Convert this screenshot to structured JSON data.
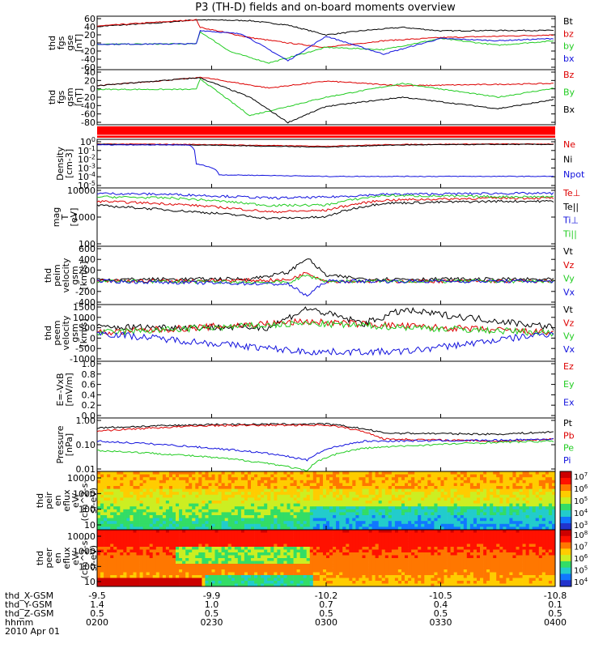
{
  "title": "P3 (TH-D) fields and on-board moments overview",
  "colors": {
    "black": "#000000",
    "red": "#dd0000",
    "green": "#22cc22",
    "blue": "#1111dd",
    "state_bar": "#ff0000"
  },
  "footer": {
    "rows": [
      {
        "label": "thd_X-GSM",
        "values": [
          "-9.5",
          "-9.9",
          "-10.2",
          "-10.5",
          "-10.8"
        ]
      },
      {
        "label": "thd_Y-GSM",
        "values": [
          "1.4",
          "1.0",
          "0.7",
          "0.4",
          "0.1"
        ]
      },
      {
        "label": "thd_Z-GSM",
        "values": [
          "0.5",
          "0.5",
          "0.5",
          "0.5",
          "0.5"
        ]
      },
      {
        "label": "hhmm",
        "values": [
          "0200",
          "0230",
          "0300",
          "0330",
          "0400"
        ]
      }
    ],
    "date": "2010 Apr 01"
  },
  "chart_data": [
    {
      "type": "line",
      "panel": "fgs_gse",
      "ylabel": [
        "thd",
        "fgs",
        "gse",
        "[nT]"
      ],
      "yticks": [
        "60",
        "40",
        "20",
        "0",
        "-20",
        "-40",
        "-60"
      ],
      "ylim": [
        -60,
        60
      ],
      "series": [
        {
          "name": "Bt",
          "color": "black",
          "x": [
            "0200",
            "0216",
            "0226",
            "0240",
            "0250",
            "0300",
            "0310",
            "0320",
            "0330",
            "0345",
            "0400"
          ],
          "y": [
            37,
            45,
            52,
            50,
            40,
            18,
            28,
            35,
            27,
            28,
            28
          ]
        },
        {
          "name": "bz",
          "color": "red",
          "x": [
            "0200",
            "0226",
            "0227",
            "0240",
            "0250",
            "0300",
            "0315",
            "0330",
            "0345",
            "0400"
          ],
          "y": [
            38,
            52,
            35,
            12,
            0,
            -10,
            5,
            12,
            15,
            18
          ]
        },
        {
          "name": "by",
          "color": "green",
          "x": [
            "0200",
            "0226",
            "0227",
            "0235",
            "0245",
            "0300",
            "0315",
            "0330",
            "0345",
            "0400"
          ],
          "y": [
            -3,
            -2,
            25,
            -20,
            -45,
            -10,
            -15,
            10,
            -5,
            5
          ]
        },
        {
          "name": "bx",
          "color": "blue",
          "x": [
            "0200",
            "0226",
            "0227",
            "0238",
            "0250",
            "0300",
            "0315",
            "0330",
            "0345",
            "0400"
          ],
          "y": [
            -3,
            -2,
            28,
            20,
            -40,
            15,
            -25,
            10,
            5,
            10
          ]
        }
      ]
    },
    {
      "type": "line",
      "panel": "fgs_gsm",
      "ylabel": [
        "thd",
        "fgs",
        "gsm",
        "[nT]"
      ],
      "yticks": [
        "40",
        "20",
        "0",
        "-20",
        "-40",
        "-60",
        "-80"
      ],
      "ylim": [
        -80,
        40
      ],
      "series": [
        {
          "name": "Bz",
          "color": "red",
          "x": [
            "0200",
            "0226",
            "0227",
            "0245",
            "0300",
            "0320",
            "0345",
            "0400"
          ],
          "y": [
            5,
            22,
            24,
            0,
            15,
            5,
            8,
            10
          ]
        },
        {
          "name": "By",
          "color": "green",
          "x": [
            "0200",
            "0226",
            "0227",
            "0240",
            "0300",
            "0320",
            "0345",
            "0400"
          ],
          "y": [
            -3,
            -3,
            20,
            -60,
            -20,
            10,
            -20,
            0
          ]
        },
        {
          "name": "Bx",
          "color": "black",
          "x": [
            "0200",
            "0226",
            "0227",
            "0240",
            "0250",
            "0300",
            "0320",
            "0345",
            "0400"
          ],
          "y": [
            5,
            22,
            22,
            -20,
            -75,
            -40,
            -20,
            -45,
            -25
          ]
        }
      ]
    },
    {
      "type": "line",
      "panel": "density",
      "ylabel": [
        "Density",
        "[cm-3]"
      ],
      "yscale": "log",
      "yticks": [
        "10^0",
        "10^-1",
        "10^-2",
        "10^-3",
        "10^-4",
        "10^-5"
      ],
      "ylim": [
        1e-05,
        3
      ],
      "series": [
        {
          "name": "Ne",
          "color": "red",
          "x": [
            "0200",
            "0226",
            "0245",
            "0300",
            "0320",
            "0345",
            "0400"
          ],
          "y": [
            0.9,
            0.8,
            0.6,
            0.5,
            0.8,
            0.9,
            0.9
          ]
        },
        {
          "name": "Ni",
          "color": "black",
          "x": [
            "0200",
            "0226",
            "0245",
            "0300",
            "0320",
            "0345",
            "0400"
          ],
          "y": [
            0.8,
            0.7,
            0.5,
            0.4,
            0.7,
            0.8,
            0.8
          ]
        },
        {
          "name": "Npot",
          "color": "blue",
          "x": [
            "0200",
            "0224",
            "0226",
            "0232",
            "0300",
            "0345",
            "0400"
          ],
          "y": [
            0.7,
            0.7,
            0.005,
            0.0003,
            0.0002,
            0.0002,
            0.0002
          ]
        }
      ]
    },
    {
      "type": "line",
      "panel": "temperature",
      "ylabel": [
        "mag",
        "T",
        "[eV]"
      ],
      "yscale": "log",
      "yticks": [
        "10000",
        "1000",
        "100"
      ],
      "ylim": [
        100,
        10000
      ],
      "series": [
        {
          "name": "Te⊥",
          "color": "red",
          "x": [
            "0200",
            "0220",
            "0245",
            "0300",
            "0315",
            "0345",
            "0400"
          ],
          "y": [
            3500,
            2800,
            1500,
            1700,
            3800,
            4500,
            4500
          ]
        },
        {
          "name": "Te||",
          "color": "black",
          "x": [
            "0200",
            "0220",
            "0245",
            "0300",
            "0315",
            "0345",
            "0400"
          ],
          "y": [
            2500,
            1700,
            900,
            1000,
            3000,
            3500,
            3500
          ]
        },
        {
          "name": "Ti⊥",
          "color": "blue",
          "x": [
            "0200",
            "0220",
            "0245",
            "0300",
            "0315",
            "0345",
            "0400"
          ],
          "y": [
            6500,
            6000,
            4500,
            4800,
            6000,
            6500,
            6500
          ]
        },
        {
          "name": "Ti||",
          "color": "green",
          "x": [
            "0200",
            "0220",
            "0245",
            "0300",
            "0315",
            "0345",
            "0400"
          ],
          "y": [
            5000,
            4500,
            2500,
            2600,
            5500,
            5000,
            5000
          ]
        }
      ]
    },
    {
      "type": "line",
      "panel": "peim_velocity",
      "ylabel": [
        "thd",
        "peim",
        "velocity",
        "gsm",
        "[km/s]"
      ],
      "yticks": [
        "600",
        "400",
        "200",
        "0",
        "-200",
        "-400"
      ],
      "ylim": [
        -400,
        600
      ],
      "series": [
        {
          "name": "Vt",
          "color": "black",
          "x": [
            "0200",
            "0240",
            "0250",
            "0255",
            "0300",
            "0310",
            "0400"
          ],
          "y": [
            30,
            40,
            150,
            400,
            100,
            40,
            30
          ]
        },
        {
          "name": "Vz",
          "color": "red",
          "x": [
            "0200",
            "0250",
            "0255",
            "0300",
            "0400"
          ],
          "y": [
            0,
            20,
            150,
            0,
            0
          ]
        },
        {
          "name": "Vy",
          "color": "green",
          "x": [
            "0200",
            "0250",
            "0255",
            "0300",
            "0400"
          ],
          "y": [
            0,
            -20,
            100,
            0,
            0
          ]
        },
        {
          "name": "Vx",
          "color": "blue",
          "x": [
            "0200",
            "0250",
            "0255",
            "0300",
            "0400"
          ],
          "y": [
            0,
            -50,
            -250,
            0,
            0
          ]
        }
      ]
    },
    {
      "type": "line",
      "panel": "peem_velocity",
      "ylabel": [
        "thd",
        "peem",
        "velocity",
        "gsm",
        "[km/s]"
      ],
      "yticks": [
        "1500",
        "1000",
        "500",
        "0",
        "-500",
        "-1000"
      ],
      "ylim": [
        -1500,
        1500
      ],
      "series": [
        {
          "name": "Vt",
          "color": "black",
          "x": [
            "0200",
            "0245",
            "0255",
            "0310",
            "0320",
            "0400"
          ],
          "y": [
            300,
            300,
            1300,
            500,
            1200,
            300
          ]
        },
        {
          "name": "Vz",
          "color": "red",
          "x": [
            "0200",
            "0255",
            "0400"
          ],
          "y": [
            0,
            600,
            0
          ]
        },
        {
          "name": "Vy",
          "color": "green",
          "x": [
            "0200",
            "0255",
            "0400"
          ],
          "y": [
            0,
            500,
            0
          ]
        },
        {
          "name": "Vx",
          "color": "blue",
          "x": [
            "0200",
            "0255",
            "0320",
            "0400"
          ],
          "y": [
            0,
            -1000,
            -1000,
            0
          ]
        }
      ]
    },
    {
      "type": "line",
      "panel": "e_vxb",
      "ylabel": [
        "E=-VxB",
        "[mV/m]"
      ],
      "yticks": [
        "1.0",
        "0.8",
        "0.6",
        "0.4",
        "0.2",
        "0.0"
      ],
      "ylim": [
        0,
        1
      ],
      "series": [
        {
          "name": "Ez",
          "color": "red",
          "x": [],
          "y": []
        },
        {
          "name": "Ey",
          "color": "green",
          "x": [],
          "y": []
        },
        {
          "name": "Ex",
          "color": "blue",
          "x": [],
          "y": []
        }
      ]
    },
    {
      "type": "line",
      "panel": "pressure",
      "ylabel": [
        "Pressure",
        "[nPa]"
      ],
      "yscale": "log",
      "yticks": [
        "1.00",
        "0.10",
        "0.01"
      ],
      "ylim": [
        0.01,
        2
      ],
      "series": [
        {
          "name": "Pt",
          "color": "black",
          "x": [
            "0200",
            "0230",
            "0300",
            "0315",
            "0345",
            "0400"
          ],
          "y": [
            0.75,
            1.05,
            1.1,
            0.45,
            0.4,
            0.5
          ]
        },
        {
          "name": "Pb",
          "color": "red",
          "x": [
            "0200",
            "0230",
            "0300",
            "0315",
            "0345",
            "0400"
          ],
          "y": [
            0.55,
            0.95,
            1.0,
            0.25,
            0.2,
            0.25
          ]
        },
        {
          "name": "Pe",
          "color": "green",
          "x": [
            "0200",
            "0230",
            "0255",
            "0310",
            "0345",
            "0400"
          ],
          "y": [
            0.08,
            0.04,
            0.01,
            0.1,
            0.18,
            0.2
          ]
        },
        {
          "name": "Pi",
          "color": "blue",
          "x": [
            "0200",
            "0230",
            "0255",
            "0310",
            "0345",
            "0400"
          ],
          "y": [
            0.2,
            0.1,
            0.03,
            0.2,
            0.22,
            0.25
          ]
        }
      ]
    },
    {
      "type": "heatmap",
      "panel": "peir_eflux",
      "ylabel": [
        "thd",
        "peir",
        "en",
        "eflux",
        "eV/",
        "(cm^2-s-",
        "sr-eV)"
      ],
      "yscale": "log",
      "yticks": [
        "10000",
        "1000",
        "100",
        "10"
      ],
      "colorbar": {
        "ticks": [
          "10^7",
          "10^6",
          "10^5",
          "10^4",
          "10^3"
        ]
      }
    },
    {
      "type": "heatmap",
      "panel": "peer_eflux",
      "ylabel": [
        "thd",
        "peer",
        "en",
        "eflux",
        "eV/",
        "(cm^2-s-",
        "sr-eV)"
      ],
      "yscale": "log",
      "yticks": [
        "10000",
        "1000",
        "100",
        "10"
      ],
      "colorbar": {
        "ticks": [
          "10^8",
          "10^7",
          "10^6",
          "10^5",
          "10^4"
        ]
      }
    }
  ]
}
